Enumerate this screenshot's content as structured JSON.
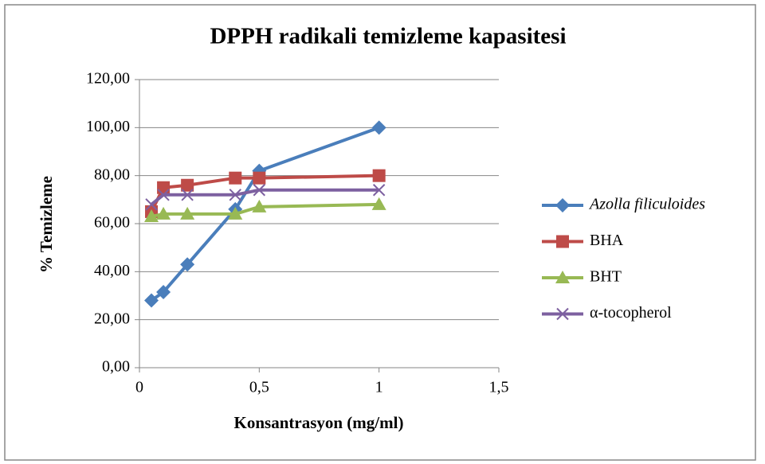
{
  "chart_data": {
    "type": "line",
    "title": "DPPH radikali temizleme kapasitesi",
    "xlabel": "Konsantrasyon (mg/ml)",
    "ylabel": "% Temizleme",
    "x": [
      0.05,
      0.1,
      0.2,
      0.4,
      0.5,
      1
    ],
    "series": [
      {
        "name": "Azolla filiculoides",
        "color": "#4a7ebb",
        "marker": "diamond",
        "values": [
          28,
          31.5,
          43,
          66,
          82,
          100
        ]
      },
      {
        "name": "BHA",
        "color": "#be4b48",
        "marker": "square",
        "values": [
          65,
          75,
          76,
          79,
          79,
          80
        ]
      },
      {
        "name": "BHT",
        "color": "#98b954",
        "marker": "triangle",
        "values": [
          63,
          64,
          64,
          64,
          67,
          68
        ]
      },
      {
        "name": "α-tocopherol",
        "color": "#7d60a0",
        "marker": "x",
        "values": [
          68,
          72,
          72,
          72,
          74,
          74
        ]
      }
    ],
    "xlim": [
      0,
      1.5
    ],
    "xticks": [
      0,
      {
        "value": 0.5,
        "label": "0,5"
      },
      1,
      {
        "value": 1.5,
        "label": "1,5"
      }
    ],
    "ylim": [
      0,
      120
    ],
    "yticks": [
      {
        "value": 0,
        "label": "0,00"
      },
      {
        "value": 20,
        "label": "20,00"
      },
      {
        "value": 40,
        "label": "40,00"
      },
      {
        "value": 60,
        "label": "60,00"
      },
      {
        "value": 80,
        "label": "80,00"
      },
      {
        "value": 100,
        "label": "100,00"
      },
      {
        "value": 120,
        "label": "120,00"
      }
    ],
    "grid": true,
    "legend": "right"
  }
}
